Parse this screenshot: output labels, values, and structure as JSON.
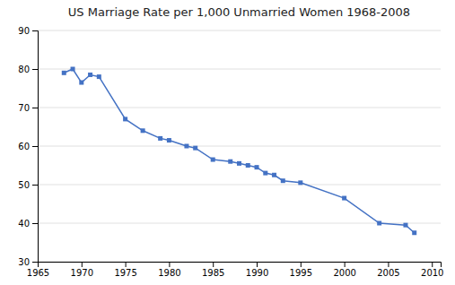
{
  "chart_data": {
    "type": "line",
    "title": "US Marriage Rate per 1,000 Unmarried Women 1968-2008",
    "x": [
      1968,
      1969,
      1970,
      1971,
      1972,
      1975,
      1977,
      1979,
      1980,
      1982,
      1983,
      1985,
      1987,
      1988,
      1989,
      1990,
      1991,
      1992,
      1993,
      1995,
      2000,
      2004,
      2007,
      2008
    ],
    "values": [
      79,
      80,
      76.5,
      78.5,
      78,
      67,
      64,
      62,
      61.5,
      60,
      59.5,
      56.5,
      56,
      55.5,
      55,
      54.5,
      53,
      52.5,
      51,
      50.5,
      46.5,
      40,
      39.5,
      37.5
    ],
    "xlim": [
      1965,
      2011
    ],
    "ylim": [
      30,
      90
    ],
    "xticks": [
      1965,
      1970,
      1975,
      1980,
      1985,
      1990,
      1995,
      2000,
      2005,
      2010
    ],
    "yticks": [
      30,
      40,
      50,
      60,
      70,
      80,
      90
    ],
    "color": "#4472C4",
    "marker": "square",
    "grid": true
  }
}
